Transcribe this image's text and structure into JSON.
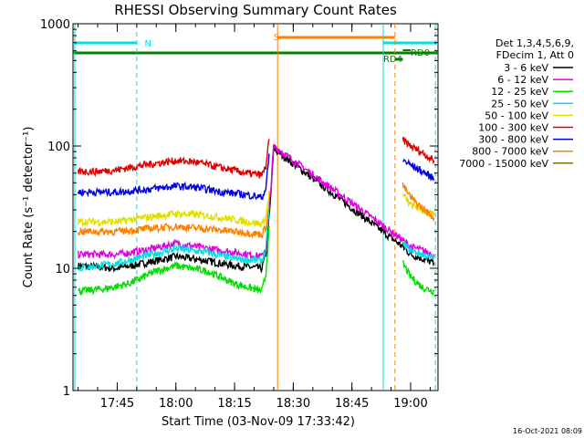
{
  "chart_data": {
    "type": "line",
    "title": "RHESSI Observing Summary Count Rates",
    "xlabel": "Start Time (03-Nov-09 17:33:42)",
    "ylabel": "Count Rate (s⁻¹ detector⁻¹)",
    "y_scale": "log",
    "ylim": [
      1,
      1000
    ],
    "xlim": [
      "17:33:42",
      "19:07:00"
    ],
    "y_ticks": [
      "1",
      "10",
      "100",
      "1000"
    ],
    "x_ticks": [
      "17:45",
      "18:00",
      "18:15",
      "18:30",
      "18:45",
      "19:00"
    ],
    "legend_header": [
      "Det 1,3,4,5,6,9,",
      "FDecim 1, Att 0"
    ],
    "legend_position": "right",
    "series": [
      {
        "name": "3 - 6 keV",
        "color": "#000000",
        "time": [
          "17:35",
          "17:45",
          "17:52",
          "18:00",
          "18:08",
          "18:15",
          "18:22",
          "18:23",
          "18:24",
          "18:25",
          "18:58",
          "19:00",
          "19:03",
          "19:06"
        ],
        "values": [
          10.5,
          10,
          11,
          12.5,
          11.5,
          10.5,
          10,
          13,
          30,
          95,
          15,
          13,
          12,
          11
        ]
      },
      {
        "name": "6 - 12 keV",
        "color": "#e000e0",
        "time": [
          "17:35",
          "17:45",
          "17:52",
          "18:00",
          "18:08",
          "18:15",
          "18:22",
          "18:23",
          "18:24",
          "18:25",
          "18:58",
          "19:00",
          "19:03",
          "19:06"
        ],
        "values": [
          13,
          13,
          14,
          16,
          14.5,
          13.5,
          12.5,
          15,
          35,
          100,
          17,
          15,
          14,
          13
        ]
      },
      {
        "name": "12 - 25 keV",
        "color": "#00e000",
        "time": [
          "17:35",
          "17:42",
          "17:48",
          "17:55",
          "18:00",
          "18:08",
          "18:15",
          "18:22",
          "18:23",
          "18:24",
          "18:58",
          "19:00",
          "19:03",
          "19:06"
        ],
        "values": [
          6.5,
          6.8,
          7.5,
          9.5,
          10.5,
          9.5,
          7.5,
          6.5,
          9,
          25,
          11,
          8.5,
          7,
          6.5
        ]
      },
      {
        "name": "25 - 50 keV",
        "color": "#00e0e0",
        "time": [
          "17:35",
          "17:45",
          "17:52",
          "18:00",
          "18:08",
          "18:15",
          "18:22",
          "18:23",
          "18:24",
          "18:58",
          "19:00",
          "19:03",
          "19:06"
        ],
        "values": [
          10,
          11,
          12.5,
          14.5,
          13.5,
          12,
          11.5,
          14,
          38,
          16,
          14,
          13,
          12
        ]
      },
      {
        "name": "50 - 100 keV",
        "color": "#e0e000",
        "time": [
          "17:35",
          "17:45",
          "17:52",
          "18:00",
          "18:08",
          "18:15",
          "18:22",
          "18:23",
          "18:24",
          "18:58",
          "19:00",
          "19:03",
          "19:06"
        ],
        "values": [
          24,
          24,
          26,
          28,
          27,
          25,
          23,
          26,
          45,
          40,
          33,
          30,
          27
        ]
      },
      {
        "name": "100 - 300 keV",
        "color": "#e00000",
        "time": [
          "17:35",
          "17:40",
          "17:45",
          "17:52",
          "18:00",
          "18:05",
          "18:12",
          "18:18",
          "18:22",
          "18:23",
          "18:24",
          "18:58",
          "19:00",
          "19:03",
          "19:06"
        ],
        "values": [
          62,
          62,
          64,
          70,
          76,
          74,
          66,
          60,
          58,
          68,
          125,
          112,
          100,
          88,
          76
        ]
      },
      {
        "name": "300 - 800 keV",
        "color": "#0000e0",
        "time": [
          "17:35",
          "17:40",
          "17:45",
          "17:52",
          "18:00",
          "18:05",
          "18:12",
          "18:18",
          "18:22",
          "18:23",
          "18:24",
          "18:58",
          "19:00",
          "19:03",
          "19:06"
        ],
        "values": [
          42,
          42,
          42,
          44,
          47,
          46,
          42,
          40,
          38,
          45,
          95,
          77,
          70,
          62,
          54
        ]
      },
      {
        "name": "800 - 7000 keV",
        "color": "#ff8000",
        "time": [
          "17:35",
          "17:45",
          "17:52",
          "18:00",
          "18:08",
          "18:15",
          "18:22",
          "18:23",
          "18:24",
          "18:58",
          "19:00",
          "19:03",
          "19:06"
        ],
        "values": [
          20,
          20,
          21,
          22,
          21,
          20,
          19,
          22,
          35,
          48,
          38,
          31,
          26
        ]
      },
      {
        "name": "7000 - 15000 keV",
        "color": "#8b6b00",
        "time": [],
        "values": []
      }
    ],
    "annotations": [
      {
        "text": "N",
        "color": "#00e0e0"
      },
      {
        "text": "S",
        "color": "#ff8000"
      },
      {
        "text": "RD0",
        "color": "#008000"
      },
      {
        "text": "RD4",
        "color": "#008000"
      }
    ],
    "footer_timestamp": "16-Oct-2021 08:09"
  }
}
